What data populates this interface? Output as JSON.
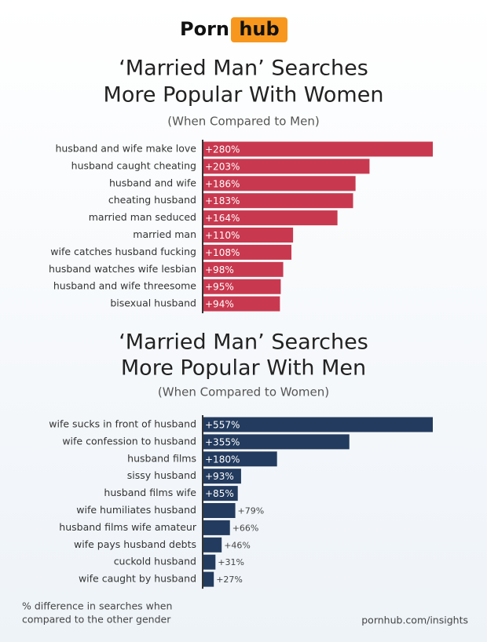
{
  "header": {
    "logo": [
      "Porn",
      "hub"
    ]
  },
  "chart_data": [
    {
      "type": "bar",
      "orientation": "horizontal",
      "color": "#c8394f",
      "title": [
        "‘Married Man’ Searches",
        "More Popular With Women"
      ],
      "subtitle": "(When Compared to Men)",
      "categories": [
        "husband and wife make love",
        "husband caught cheating",
        "husband and wife",
        "cheating husband",
        "married man seduced",
        "married man",
        "wife catches husband fucking",
        "husband watches wife lesbian",
        "husband and wife threesome",
        "bisexual husband"
      ],
      "values": [
        280,
        203,
        186,
        183,
        164,
        110,
        108,
        98,
        95,
        94
      ],
      "value_labels": [
        "+280%",
        "+203%",
        "+186%",
        "+183%",
        "+164%",
        "+110%",
        "+108%",
        "+98%",
        "+95%",
        "+94%"
      ]
    },
    {
      "type": "bar",
      "orientation": "horizontal",
      "color": "#233b5e",
      "title": [
        "‘Married Man’ Searches",
        "More Popular With Men"
      ],
      "subtitle": "(When Compared to Women)",
      "categories": [
        "wife sucks in front of husband",
        "wife confession to husband",
        "husband films",
        "sissy husband",
        "husband films wife",
        "wife humiliates husband",
        "husband films wife amateur",
        "wife pays husband debts",
        "cuckold husband",
        "wife caught by husband"
      ],
      "values": [
        557,
        355,
        180,
        93,
        85,
        79,
        66,
        46,
        31,
        27
      ],
      "value_labels": [
        "+557%",
        "+355%",
        "+180%",
        "+93%",
        "+85%",
        "+79%",
        "+66%",
        "+46%",
        "+31%",
        "+27%"
      ]
    }
  ],
  "footer": {
    "note": [
      "% difference in searches when",
      "compared to the other gender"
    ],
    "source": "pornhub.com/insights"
  }
}
